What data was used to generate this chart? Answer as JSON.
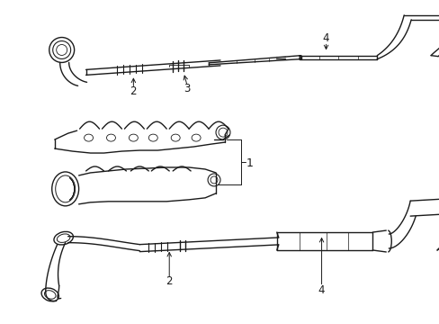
{
  "bg_color": "#ffffff",
  "line_color": "#1a1a1a",
  "figsize": [
    4.89,
    3.6
  ],
  "dpi": 100,
  "lw": 1.0
}
